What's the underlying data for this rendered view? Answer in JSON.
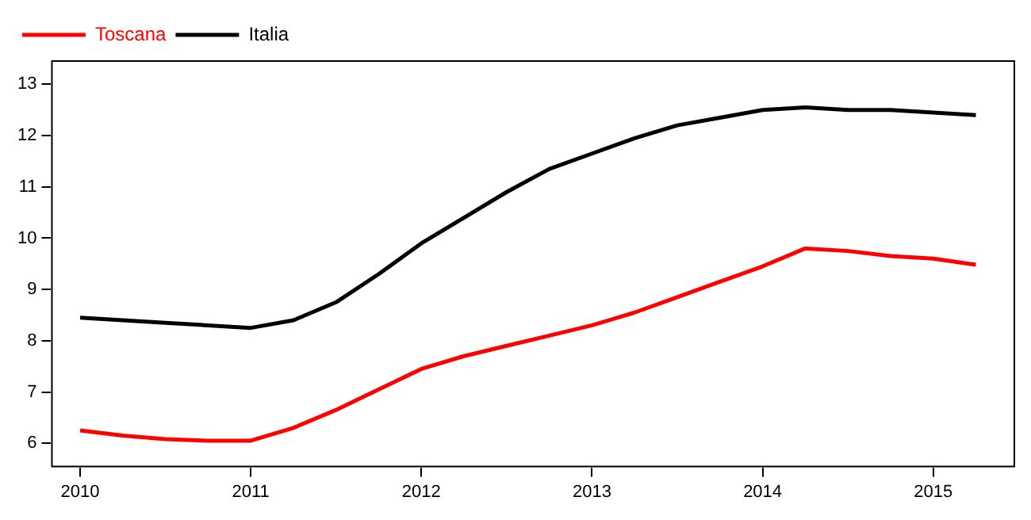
{
  "chart_data": {
    "type": "line",
    "x": [
      2010,
      2010.25,
      2010.5,
      2010.75,
      2011,
      2011.25,
      2011.5,
      2011.75,
      2012,
      2012.25,
      2012.5,
      2012.75,
      2013,
      2013.25,
      2013.5,
      2013.75,
      2014,
      2014.25,
      2014.5,
      2014.75,
      2015,
      2015.25
    ],
    "series": [
      {
        "name": "Toscana",
        "color": "#ff0000",
        "values": [
          6.25,
          6.15,
          6.08,
          6.05,
          6.05,
          6.3,
          6.65,
          7.05,
          7.45,
          7.7,
          7.9,
          8.1,
          8.3,
          8.55,
          8.85,
          9.15,
          9.45,
          9.8,
          9.75,
          9.65,
          9.6,
          9.48
        ]
      },
      {
        "name": "Italia",
        "color": "#000000",
        "values": [
          8.45,
          8.4,
          8.35,
          8.3,
          8.25,
          8.4,
          8.75,
          9.3,
          9.9,
          10.4,
          10.9,
          11.35,
          11.65,
          11.95,
          12.2,
          12.35,
          12.5,
          12.55,
          12.5,
          12.5,
          12.45,
          12.4
        ]
      }
    ],
    "xlim": [
      2009.83,
      2015.48
    ],
    "xticks": [
      2010,
      2011,
      2012,
      2013,
      2014,
      2015
    ],
    "ylim": [
      5.53,
      13.47
    ],
    "yticks": [
      6,
      7,
      8,
      9,
      10,
      11,
      12,
      13
    ],
    "grid": false,
    "legend": "top left",
    "line_style": "solid",
    "marker": "none"
  }
}
